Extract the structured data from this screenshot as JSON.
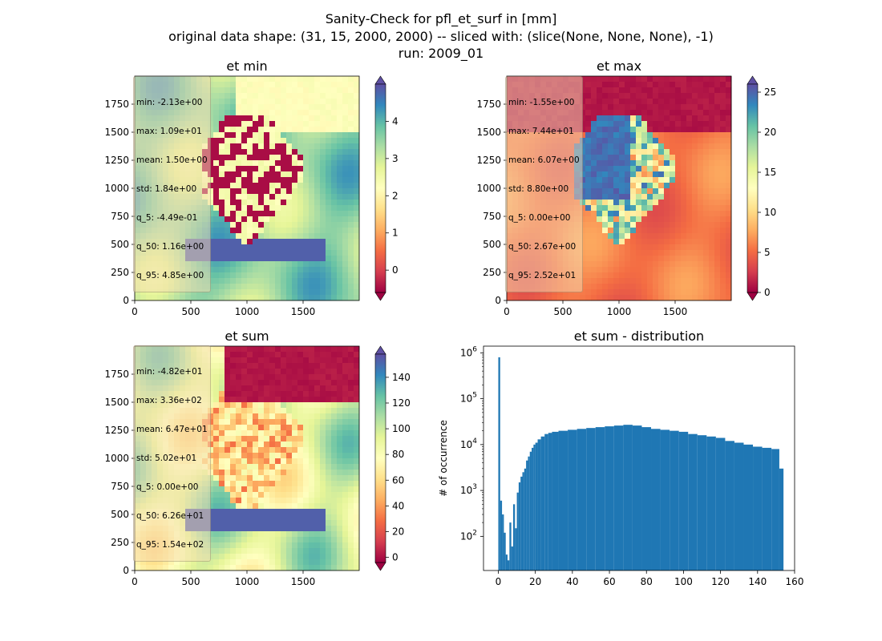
{
  "figure": {
    "suptitle_lines": [
      "Sanity-Check for pfl_et_surf in [mm]",
      "original data shape: (31, 15, 2000, 2000) -- sliced with: (slice(None, None, None), -1)",
      "run: 2009_01"
    ]
  },
  "colormap": {
    "name": "Spectral",
    "stops": [
      "#9e0142",
      "#d53e4f",
      "#f46d43",
      "#fdae61",
      "#fee08b",
      "#ffffbf",
      "#e6f598",
      "#abdda4",
      "#66c2a5",
      "#3288bd",
      "#5e4fa2"
    ]
  },
  "chart_data": [
    {
      "type": "heatmap",
      "title": "et min",
      "xticks": [
        "0",
        "500",
        "1000",
        "1500"
      ],
      "yticks": [
        "0",
        "250",
        "500",
        "750",
        "1000",
        "1250",
        "1500",
        "1750"
      ],
      "xlim": [
        0,
        2000
      ],
      "ylim": [
        0,
        2000
      ],
      "colorbar": {
        "vmin": -0.6,
        "vmax": 5.0,
        "ticks": [
          0,
          1,
          2,
          3,
          4
        ],
        "tick_labels": [
          "0",
          "1",
          "2",
          "3",
          "4"
        ],
        "extend": "both"
      },
      "stats": [
        "min: -2.13e+00",
        "max: 1.09e+01",
        "mean: 1.50e+00",
        "std: 1.84e+00",
        "q_5: -4.49e-01",
        "q_50: 1.16e+00",
        "q_95: 4.85e+00"
      ]
    },
    {
      "type": "heatmap",
      "title": "et max",
      "xticks": [
        "0",
        "500",
        "1000",
        "1500"
      ],
      "yticks": [
        "0",
        "250",
        "500",
        "750",
        "1000",
        "1250",
        "1500",
        "1750"
      ],
      "xlim": [
        0,
        2000
      ],
      "ylim": [
        0,
        2000
      ],
      "colorbar": {
        "vmin": 0,
        "vmax": 26,
        "ticks": [
          0,
          5,
          10,
          15,
          20,
          25
        ],
        "tick_labels": [
          "0",
          "5",
          "10",
          "15",
          "20",
          "25"
        ],
        "extend": "both"
      },
      "stats": [
        "min: -1.55e+00",
        "max: 7.44e+01",
        "mean: 6.07e+00",
        "std: 8.80e+00",
        "q_5: 0.00e+00",
        "q_50: 2.67e+00",
        "q_95: 2.52e+01"
      ]
    },
    {
      "type": "heatmap",
      "title": "et sum",
      "xticks": [
        "0",
        "500",
        "1000",
        "1500"
      ],
      "yticks": [
        "0",
        "250",
        "500",
        "750",
        "1000",
        "1250",
        "1500",
        "1750"
      ],
      "xlim": [
        0,
        2000
      ],
      "ylim": [
        0,
        2000
      ],
      "colorbar": {
        "vmin": -4,
        "vmax": 158,
        "ticks": [
          0,
          20,
          40,
          60,
          80,
          100,
          120,
          140
        ],
        "tick_labels": [
          "0",
          "20",
          "40",
          "60",
          "80",
          "100",
          "120",
          "140"
        ],
        "extend": "both"
      },
      "stats": [
        "min: -4.82e+01",
        "max: 3.36e+02",
        "mean: 6.47e+01",
        "std: 5.02e+01",
        "q_5: 0.00e+00",
        "q_50: 6.26e+01",
        "q_95: 1.54e+02"
      ]
    },
    {
      "type": "bar",
      "title": "et sum - distribution",
      "ylabel": "# of occurrence",
      "xlabel": "",
      "yscale": "log",
      "xlim": [
        -8,
        160
      ],
      "ylim": [
        18,
        1400000
      ],
      "xticks": [
        0,
        20,
        40,
        60,
        80,
        100,
        120,
        140,
        160
      ],
      "xtick_labels": [
        "0",
        "20",
        "40",
        "60",
        "80",
        "100",
        "120",
        "140",
        "160"
      ],
      "yticks": [
        100,
        1000,
        10000,
        100000,
        1000000
      ],
      "ytick_labels": [
        "10^2",
        "10^3",
        "10^4",
        "10^5",
        "10^6"
      ],
      "color": "#1f77b4",
      "bin_centers": [
        0.5,
        1.5,
        2.5,
        3.5,
        4.5,
        5.5,
        6.5,
        7.5,
        8.5,
        9.5,
        10.5,
        11.5,
        12.5,
        13.5,
        14.5,
        15.5,
        16.5,
        17.5,
        18.5,
        19.5,
        20.5,
        22,
        24,
        26,
        28,
        30,
        35,
        40,
        45,
        50,
        55,
        60,
        65,
        70,
        75,
        80,
        85,
        90,
        95,
        100,
        105,
        110,
        115,
        120,
        125,
        130,
        135,
        140,
        145,
        150,
        153.5
      ],
      "values": [
        800000,
        600,
        300,
        120,
        40,
        30,
        200,
        60,
        500,
        150,
        900,
        1500,
        2000,
        2500,
        3000,
        4500,
        5500,
        7000,
        8500,
        10000,
        11000,
        13000,
        15000,
        17000,
        18000,
        19000,
        20000,
        21000,
        22000,
        23000,
        24000,
        25000,
        26000,
        27000,
        26000,
        24000,
        22000,
        21000,
        20000,
        19000,
        17000,
        16000,
        15000,
        14000,
        12000,
        11000,
        10000,
        9000,
        8500,
        8000,
        3000
      ]
    }
  ]
}
